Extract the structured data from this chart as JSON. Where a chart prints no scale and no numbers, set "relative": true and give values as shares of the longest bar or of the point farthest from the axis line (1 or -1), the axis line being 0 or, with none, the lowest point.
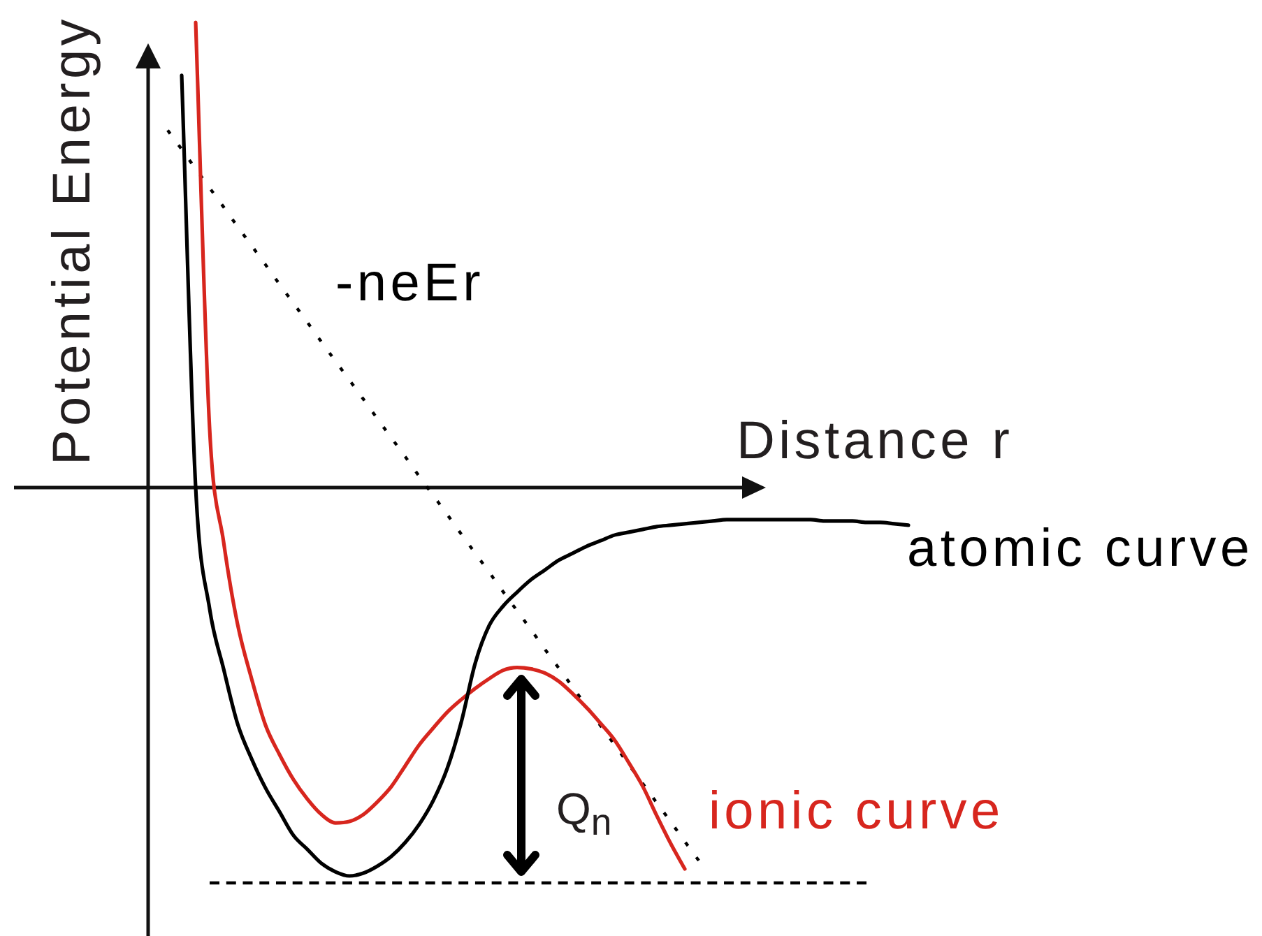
{
  "chart_data": {
    "type": "line",
    "relative": true,
    "xlabel": "Distance r",
    "ylabel": "Potential Energy",
    "categories": [
      null,
      null,
      null,
      null,
      null,
      null,
      null,
      null,
      null,
      null,
      null,
      null,
      null,
      null,
      null,
      null,
      null,
      null,
      null,
      null,
      null,
      null,
      null,
      null,
      null,
      null,
      null,
      null,
      null,
      null,
      null,
      null,
      null,
      null,
      null,
      null,
      null,
      null,
      null,
      null,
      null,
      null,
      null,
      null,
      null,
      null,
      null,
      null,
      null,
      null,
      null,
      null,
      null,
      null,
      null
    ],
    "series": [
      {
        "name": "atomic curve",
        "color": "#000000",
        "values": [
          null,
          null,
          0.886,
          0,
          -0.261,
          -0.39,
          -0.508,
          -0.583,
          -0.646,
          -0.697,
          -0.748,
          -0.778,
          -0.808,
          -0.826,
          -0.835,
          -0.829,
          -0.814,
          -0.793,
          -0.763,
          -0.724,
          -0.673,
          -0.604,
          -0.505,
          -0.378,
          -0.297,
          -0.255,
          -0.225,
          -0.198,
          -0.177,
          -0.156,
          -0.141,
          -0.126,
          -0.114,
          -0.102,
          -0.096,
          -0.09,
          -0.084,
          -0.081,
          -0.078,
          -0.075,
          -0.072,
          -0.069,
          -0.069,
          -0.069,
          -0.069,
          -0.069,
          -0.069,
          -0.069,
          -0.072,
          -0.072,
          -0.072,
          -0.075,
          -0.075,
          -0.078,
          -0.081
        ]
      },
      {
        "name": "ionic curve",
        "color": "#d7261e",
        "values": [
          null,
          null,
          null,
          1,
          0.126,
          -0.117,
          -0.294,
          -0.411,
          -0.511,
          -0.574,
          -0.628,
          -0.67,
          -0.703,
          -0.721,
          -0.718,
          -0.703,
          -0.676,
          -0.643,
          -0.598,
          -0.553,
          -0.517,
          -0.483,
          -0.456,
          -0.432,
          -0.411,
          -0.393,
          -0.387,
          -0.39,
          -0.399,
          -0.417,
          -0.444,
          -0.474,
          -0.508,
          -0.544,
          -0.592,
          -0.643,
          -0.706,
          -0.766,
          -0.82,
          null,
          null,
          null,
          null,
          null,
          null,
          null,
          null,
          null,
          null,
          null,
          null,
          null,
          null,
          null,
          null
        ]
      },
      {
        "name": "-neEr",
        "color": "#000000",
        "line_style": "dotted",
        "values": [
          null,
          0.768,
          0.727,
          0.685,
          0.644,
          0.603,
          0.561,
          0.52,
          0.479,
          0.437,
          0.396,
          0.355,
          0.313,
          0.272,
          0.231,
          0.19,
          0.148,
          0.107,
          0.066,
          0.024,
          -0.017,
          -0.058,
          -0.1,
          -0.141,
          -0.182,
          -0.224,
          -0.265,
          -0.306,
          -0.348,
          -0.389,
          -0.43,
          -0.472,
          -0.513,
          -0.554,
          -0.596,
          -0.637,
          -0.678,
          -0.719,
          -0.761,
          -0.802,
          null,
          null,
          null,
          null,
          null,
          null,
          null,
          null,
          null,
          null,
          null,
          null,
          null,
          null,
          null
        ]
      },
      {
        "color": "#000000",
        "line_style": "dashed",
        "values": [
          null,
          null,
          null,
          null,
          -0.85,
          -0.85,
          -0.85,
          -0.85,
          -0.85,
          -0.85,
          -0.85,
          -0.85,
          -0.85,
          -0.85,
          -0.85,
          -0.85,
          -0.85,
          -0.85,
          -0.85,
          -0.85,
          -0.85,
          -0.85,
          -0.85,
          -0.85,
          -0.85,
          -0.85,
          -0.85,
          -0.85,
          -0.85,
          -0.85,
          -0.85,
          -0.85,
          -0.85,
          -0.85,
          -0.85,
          -0.85,
          -0.85,
          -0.85,
          -0.85,
          -0.85,
          -0.85,
          -0.85,
          -0.85,
          -0.85,
          -0.85,
          -0.85,
          -0.85,
          -0.85,
          -0.85,
          -0.85,
          -0.85,
          -0.85,
          null,
          null,
          null
        ]
      }
    ],
    "annotations": [
      "Q$_{n}$"
    ],
    "marker": "none",
    "legend": false
  }
}
